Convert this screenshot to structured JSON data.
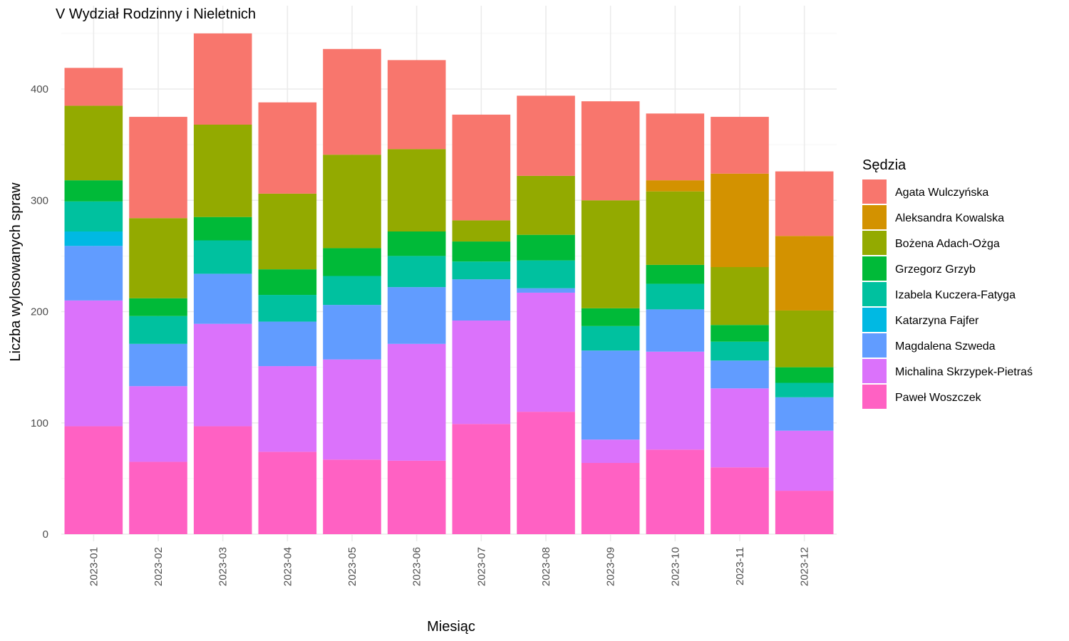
{
  "chart_data": {
    "type": "bar",
    "stacked": true,
    "title": "V Wydział Rodzinny i Nieletnich",
    "xlabel": "Miesiąc",
    "ylabel": "Liczba wylosowanych spraw",
    "ylim": [
      0,
      460
    ],
    "yticks": [
      0,
      100,
      200,
      300,
      400
    ],
    "grid": true,
    "legend_title": "Sędzia",
    "legend_position": "right",
    "categories": [
      "2023-01",
      "2023-02",
      "2023-03",
      "2023-04",
      "2023-05",
      "2023-06",
      "2023-07",
      "2023-08",
      "2023-09",
      "2023-10",
      "2023-11",
      "2023-12"
    ],
    "series": [
      {
        "name": "Paweł Woszczek",
        "color": "#FF61C3",
        "values": [
          97,
          65,
          97,
          74,
          67,
          66,
          99,
          110,
          64,
          76,
          60,
          39
        ]
      },
      {
        "name": "Michalina Skrzypek-Pietraś",
        "color": "#DB72FB",
        "values": [
          113,
          68,
          92,
          77,
          90,
          105,
          93,
          107,
          21,
          88,
          71,
          54
        ]
      },
      {
        "name": "Magdalena Szweda",
        "color": "#619CFF",
        "values": [
          49,
          38,
          45,
          40,
          49,
          51,
          37,
          4,
          80,
          38,
          25,
          30
        ]
      },
      {
        "name": "Katarzyna Fajfer",
        "color": "#00B9E3",
        "values": [
          13,
          0,
          0,
          0,
          0,
          0,
          0,
          0,
          0,
          0,
          0,
          0
        ]
      },
      {
        "name": "Izabela Kuczera-Fatyga",
        "color": "#00C19F",
        "values": [
          27,
          25,
          30,
          24,
          26,
          28,
          16,
          25,
          22,
          23,
          17,
          13
        ]
      },
      {
        "name": "Grzegorz Grzyb",
        "color": "#00BA38",
        "values": [
          19,
          16,
          21,
          23,
          25,
          22,
          18,
          23,
          16,
          17,
          15,
          14
        ]
      },
      {
        "name": "Bożena Adach-Ożga",
        "color": "#93AA00",
        "values": [
          67,
          72,
          83,
          68,
          84,
          74,
          19,
          53,
          97,
          66,
          52,
          51
        ]
      },
      {
        "name": "Aleksandra Kowalska",
        "color": "#D39200",
        "values": [
          0,
          0,
          0,
          0,
          0,
          0,
          0,
          0,
          0,
          10,
          84,
          67
        ]
      },
      {
        "name": "Agata Wulczyńska",
        "color": "#F8766D",
        "values": [
          34,
          91,
          82,
          82,
          95,
          80,
          95,
          72,
          89,
          60,
          51,
          58
        ]
      }
    ],
    "legend_order": [
      "Agata Wulczyńska",
      "Aleksandra Kowalska",
      "Bożena Adach-Ożga",
      "Grzegorz Grzyb",
      "Izabela Kuczera-Fatyga",
      "Katarzyna Fajfer",
      "Magdalena Szweda",
      "Michalina Skrzypek-Pietraś",
      "Paweł Woszczek"
    ]
  }
}
